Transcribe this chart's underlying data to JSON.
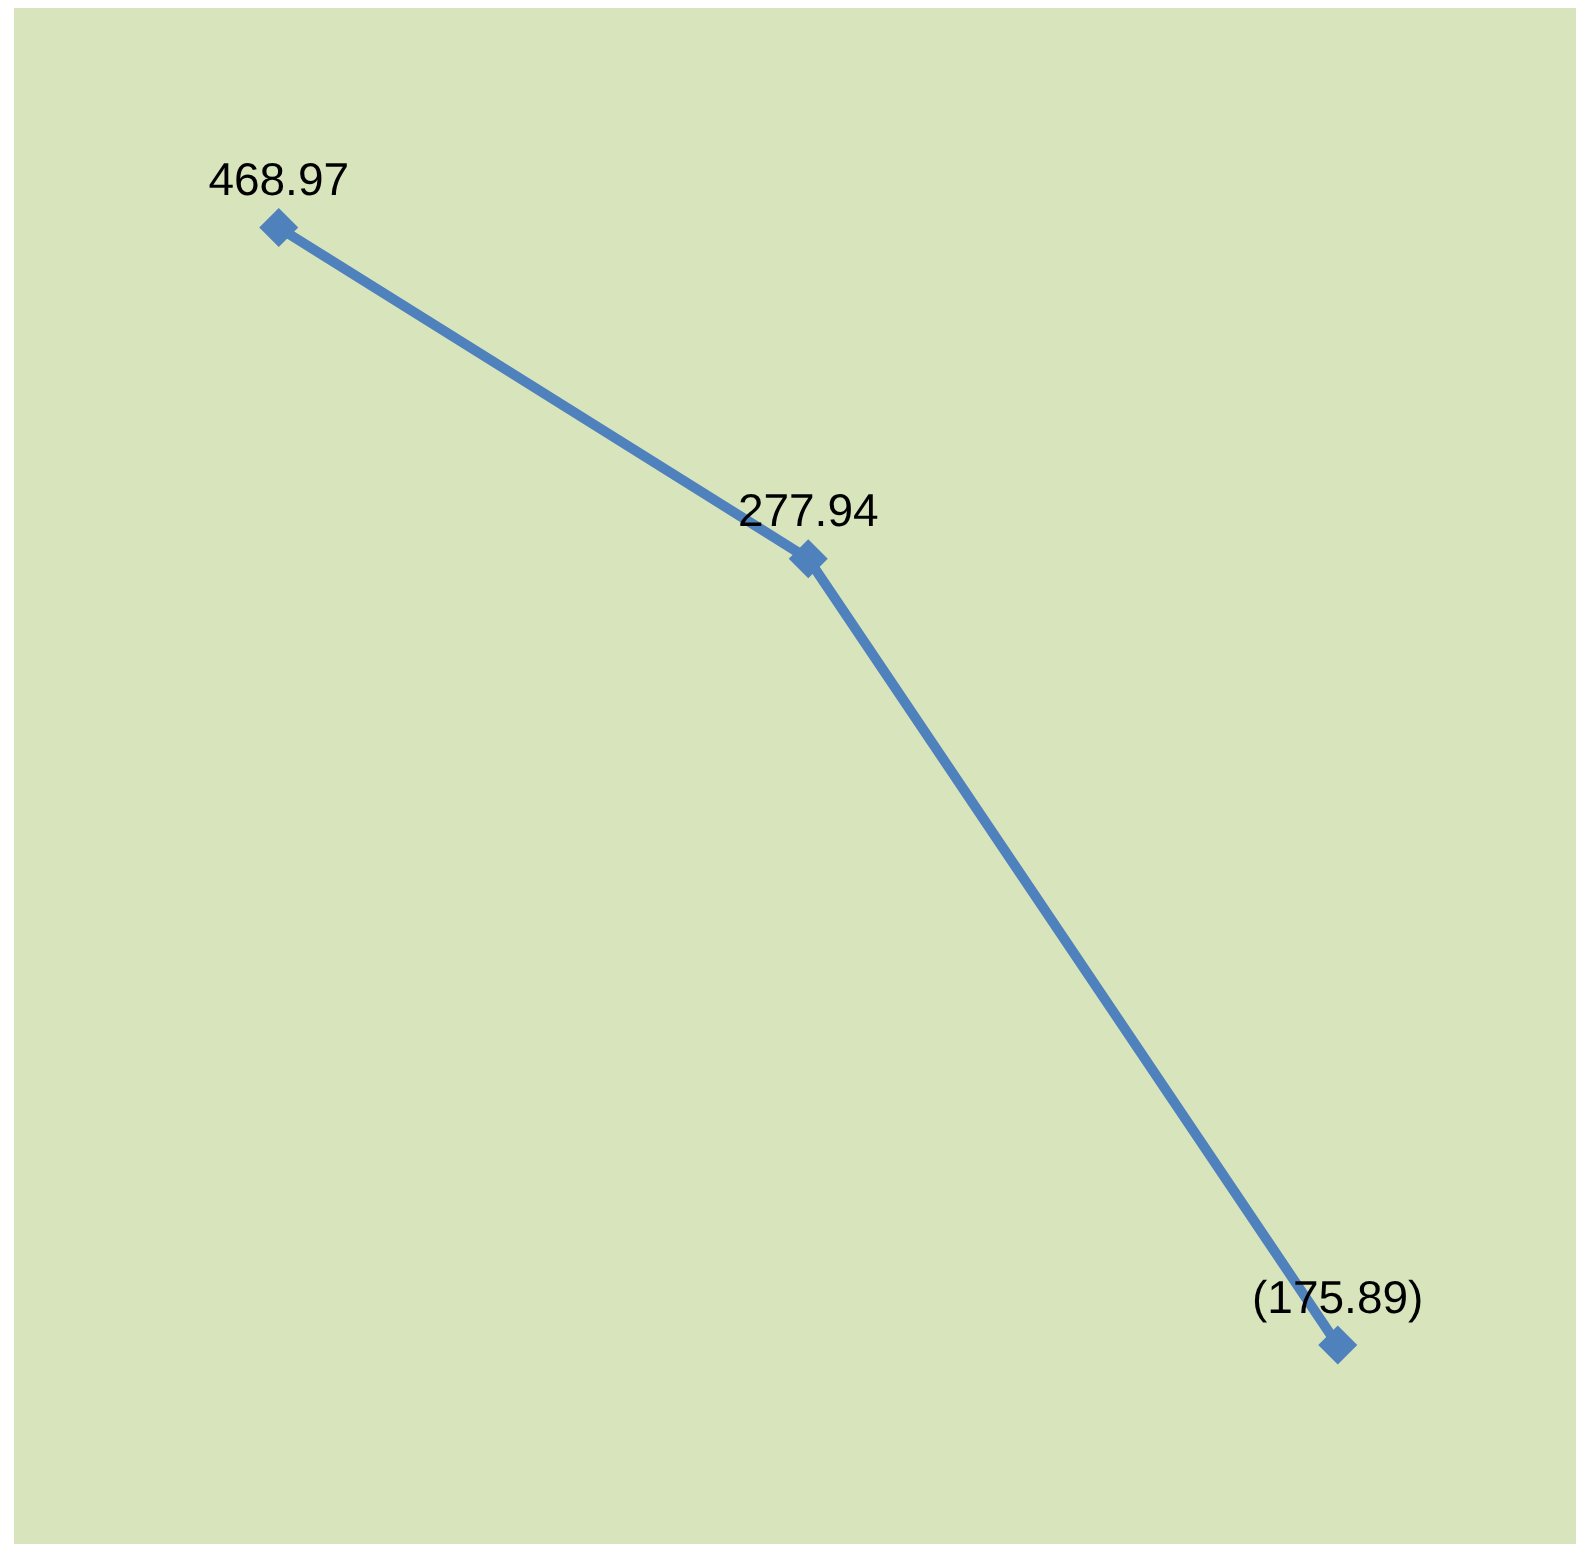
{
  "chart_data": {
    "type": "line",
    "categories": [
      null,
      null,
      null
    ],
    "series": [
      {
        "color": "#4f81bd",
        "values": [
          468.97,
          277.94,
          -175.89
        ],
        "value_labels": [
          "468.97",
          "277.94",
          "(175.89)"
        ]
      }
    ],
    "marker": "diamond",
    "line_style": "solid",
    "tick_labels": false
  }
}
